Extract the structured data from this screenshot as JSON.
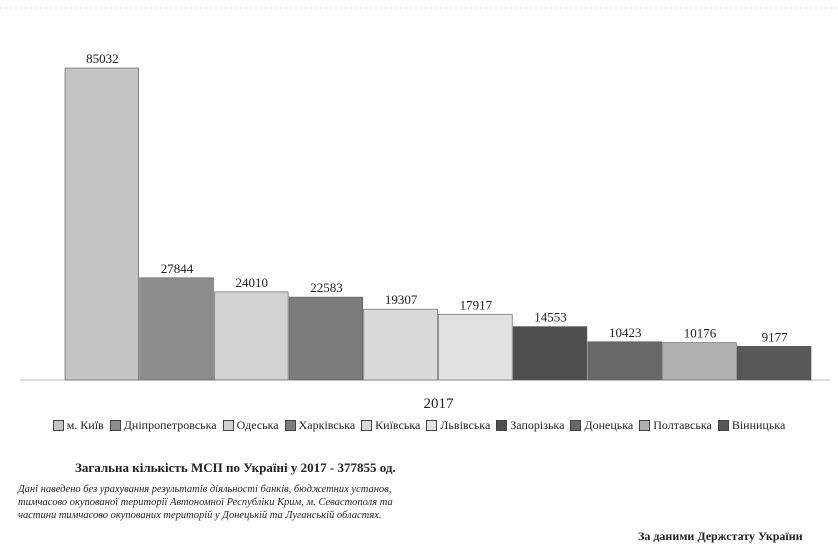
{
  "chart_data": {
    "type": "bar",
    "categories": [
      "2017"
    ],
    "series": [
      {
        "name": "м. Київ",
        "color": "#c4c4c4",
        "values": [
          85032
        ]
      },
      {
        "name": "Дніпропетровська",
        "color": "#8c8c8c",
        "values": [
          27844
        ]
      },
      {
        "name": "Одеська",
        "color": "#d2d2d2",
        "values": [
          24010
        ]
      },
      {
        "name": "Харківська",
        "color": "#7c7c7c",
        "values": [
          22583
        ]
      },
      {
        "name": "Київська",
        "color": "#dadada",
        "values": [
          19307
        ]
      },
      {
        "name": "Львівська",
        "color": "#e2e2e2",
        "values": [
          17917
        ]
      },
      {
        "name": "Запорізька",
        "color": "#4e4e4e",
        "values": [
          14553
        ]
      },
      {
        "name": "Донецька",
        "color": "#686868",
        "values": [
          10423
        ]
      },
      {
        "name": "Полтавська",
        "color": "#b0b0b0",
        "values": [
          10176
        ]
      },
      {
        "name": "Вінницька",
        "color": "#585858",
        "values": [
          9177
        ]
      }
    ],
    "title": "Загальна кількість МСП по Україні у 2017 - 377855 од.",
    "note": [
      "Дані наведено без урахування результатів діяльності банків, бюджетних установ,",
      "тимчасово окупованої території Автономної Республіки Крим, м. Севастополя та",
      "частини тимчасово окупованих територій у Донецькій та Луганській областях."
    ],
    "source": "За даними Держстату України"
  }
}
